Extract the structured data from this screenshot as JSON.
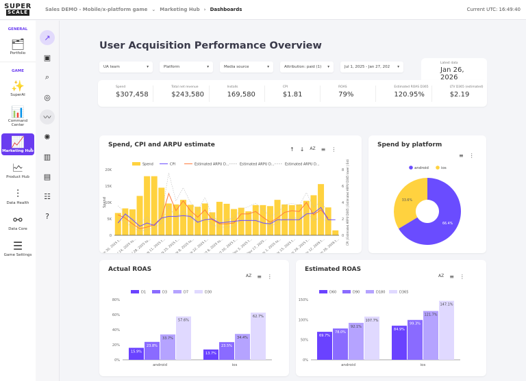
{
  "logo": {
    "line1": "SUPER",
    "line2": "SCALE"
  },
  "breadcrumb": [
    "Sales DEMO - Mobile/x-platform game",
    "Marketing Hub",
    "Dashboards"
  ],
  "utc": "Current UTC: 16:49:40",
  "sidebar": {
    "general": "GENERAL",
    "game": "GAME",
    "items": [
      {
        "label": "Portfolio",
        "icon": "folder-icon"
      },
      {
        "label": "SuperAI",
        "icon": "sparkle-bulb-icon"
      },
      {
        "label": "Command Center",
        "icon": "dashboard-dollar-icon"
      },
      {
        "label": "Marketing Hub",
        "icon": "marketing-chart-icon"
      },
      {
        "label": "Product Hub",
        "icon": "product-chart-icon"
      },
      {
        "label": "Data Health",
        "icon": "data-health-icon"
      },
      {
        "label": "Data Core",
        "icon": "data-core-icon"
      },
      {
        "label": "Game Settings",
        "icon": "sliders-icon"
      }
    ]
  },
  "subnav": [
    "trend-icon",
    "calendar-icon",
    "search-icon",
    "badge-icon",
    "line-chart-icon",
    "spinner-icon",
    "bar-chart-icon",
    "report-icon",
    "document-icon",
    "help-icon"
  ],
  "title": "User Acquisition Performance Overview",
  "filters": [
    "UA team",
    "Platform",
    "Media source",
    "Attribution: paid (1)",
    "Jul 1, 2025 - Jan 27, 202"
  ],
  "latest": {
    "label": "Latest data",
    "value": "Jan 26, 2026"
  },
  "kpis": [
    {
      "label": "Spend",
      "value": "$307,458"
    },
    {
      "label": "Total net revenue",
      "value": "$243,580"
    },
    {
      "label": "Installs",
      "value": "169,580"
    },
    {
      "label": "CPI",
      "value": "$1.81"
    },
    {
      "label": "ROAS",
      "value": "79%"
    },
    {
      "label": "Estimated ROAS D365",
      "value": "120.95%"
    },
    {
      "label": "LTV D365 (estimated)",
      "value": "$2.19"
    }
  ],
  "colors": {
    "accent": "#6a3cf0",
    "spend": "#ffd23f",
    "cpi": "#6a4cff",
    "arpu": "#ff7a3c",
    "d1": "#6a42ff",
    "d3": "#8a6bff",
    "d7": "#b5a3ff",
    "d30": "#e0d9ff"
  },
  "chart_data": [
    {
      "type": "bar",
      "title": "Spend, CPI and ARPU estimate",
      "ylabel": "Spend",
      "y2label": "CPI | Estimated ARPU D365 | Estimated ARPU D365 lower | Estimat...",
      "ylim": [
        0,
        20000
      ],
      "y2lim": [
        0,
        8
      ],
      "yticks": [
        "0",
        "5K",
        "10K",
        "15K",
        "20K"
      ],
      "y2ticks": [
        "0",
        "2",
        "4",
        "6",
        "8"
      ],
      "xticks": [
        "Jun 30, 2025 t...",
        "Jul 14, 2025 to...",
        "Jul 28, 2025 to...",
        "Aug 11, 2025 t...",
        "Aug 25, 2025 t...",
        "Sep 8, 2025 to...",
        "Sep 22, 2025 t...",
        "Oct 6, 2025 to...",
        "Oct 20, 2025 t...",
        "Nov 3, 2025 t...",
        "Nov 17, 2025...",
        "Dec 1, 2025 to...",
        "Dec 15, 2025 t...",
        "Dec 29, 2025 t...",
        "Jan 12, 2026 t...",
        "Jan 26, 2026 t..."
      ],
      "legend": [
        "Spend",
        "CPI",
        "Estimated ARPU D...",
        "Estimated ARPU D...",
        "Estimated ARPU D..."
      ],
      "spend": [
        6800,
        8200,
        7900,
        12000,
        18000,
        18000,
        14500,
        9700,
        9400,
        10800,
        9300,
        8700,
        9700,
        7000,
        10200,
        9600,
        8000,
        8400,
        7300,
        9200,
        9200,
        8900,
        10800,
        9400,
        9200,
        9400,
        10500,
        12200,
        15600,
        8500,
        1500
      ],
      "cpi": [
        1.5,
        2.6,
        1.9,
        1.1,
        1.5,
        1.2,
        2.1,
        2.3,
        2.3,
        2.4,
        2.3,
        1.6,
        1.9,
        2.0,
        1.5,
        1.6,
        1.7,
        1.8,
        1.8,
        1.8,
        1.5,
        1.4,
        1.9,
        1.9,
        1.9,
        1.9,
        2.6,
        2.7,
        3.4,
        1.9,
        1.9
      ],
      "arpu": [
        2.5,
        2.1,
        1.4,
        0.8,
        1.0,
        1.3,
        2.1,
        5.1,
        3.0,
        4.2,
        3.0,
        2.2,
        3.1,
        1.9,
        1.4,
        1.4,
        1.5,
        2.6,
        2.6,
        2.9,
        2.2,
        1.6,
        2.1,
        2.8,
        3.0,
        2.9,
        4.0,
        2.5,
        3.1,
        2.1
      ],
      "arpu_upper": [
        3.6,
        2.7,
        2.0,
        1.5,
        2.2,
        1.2,
        2.4,
        7.6,
        4.2,
        5.8,
        4.0,
        3.0,
        4.6,
        2.4,
        1.6,
        1.9,
        2.1,
        3.2,
        3.5,
        3.9,
        3.1,
        2.3,
        2.7,
        3.7,
        3.9,
        3.6,
        5.2,
        3.4,
        4.1,
        2.8
      ],
      "arpu_lower": [
        2.0,
        1.6,
        1.0,
        0.5,
        0.7,
        0.9,
        1.5,
        3.6,
        2.1,
        3.0,
        2.1,
        1.5,
        2.2,
        1.3,
        1.0,
        1.0,
        1.1,
        1.9,
        1.9,
        2.0,
        1.5,
        1.1,
        1.5,
        2.0,
        2.1,
        2.1,
        2.9,
        1.8,
        2.2,
        1.5
      ]
    },
    {
      "type": "pie",
      "title": "Spend by platform",
      "categories": [
        "android",
        "ios"
      ],
      "values": [
        66.4,
        33.6
      ],
      "labels": [
        "66.4%",
        "33.6%"
      ]
    },
    {
      "type": "bar",
      "title": "Actual ROAS",
      "categories": [
        "android",
        "ios"
      ],
      "ylim": [
        0,
        80
      ],
      "yticks": [
        "0%",
        "20%",
        "40%",
        "60%",
        "80%"
      ],
      "series": [
        {
          "name": "D1",
          "values": [
            15.9,
            13.7
          ],
          "labels": [
            "15.9%",
            "13.7%"
          ]
        },
        {
          "name": "D3",
          "values": [
            23.8,
            23.5
          ],
          "labels": [
            "23.8%",
            "23.5%"
          ]
        },
        {
          "name": "D7",
          "values": [
            33.7,
            34.4
          ],
          "labels": [
            "33.7%",
            "34.4%"
          ]
        },
        {
          "name": "D30",
          "values": [
            57.6,
            62.7
          ],
          "labels": [
            "57.6%",
            "62.7%"
          ]
        }
      ]
    },
    {
      "type": "bar",
      "title": "Estimated ROAS",
      "categories": [
        "android",
        "ios"
      ],
      "ylim": [
        0,
        150
      ],
      "yticks": [
        "0%",
        "50%",
        "100%",
        "150%"
      ],
      "series": [
        {
          "name": "D60",
          "values": [
            69.7,
            84.9
          ],
          "labels": [
            "69.7%",
            "84.9%"
          ]
        },
        {
          "name": "D90",
          "values": [
            78.0,
            99.3
          ],
          "labels": [
            "78.0%",
            "99.3%"
          ]
        },
        {
          "name": "D180",
          "values": [
            92.1,
            121.7
          ],
          "labels": [
            "92.1%",
            "121.7%"
          ]
        },
        {
          "name": "D365",
          "values": [
            107.7,
            147.1
          ],
          "labels": [
            "107.7%",
            "147.1%"
          ]
        }
      ]
    }
  ]
}
